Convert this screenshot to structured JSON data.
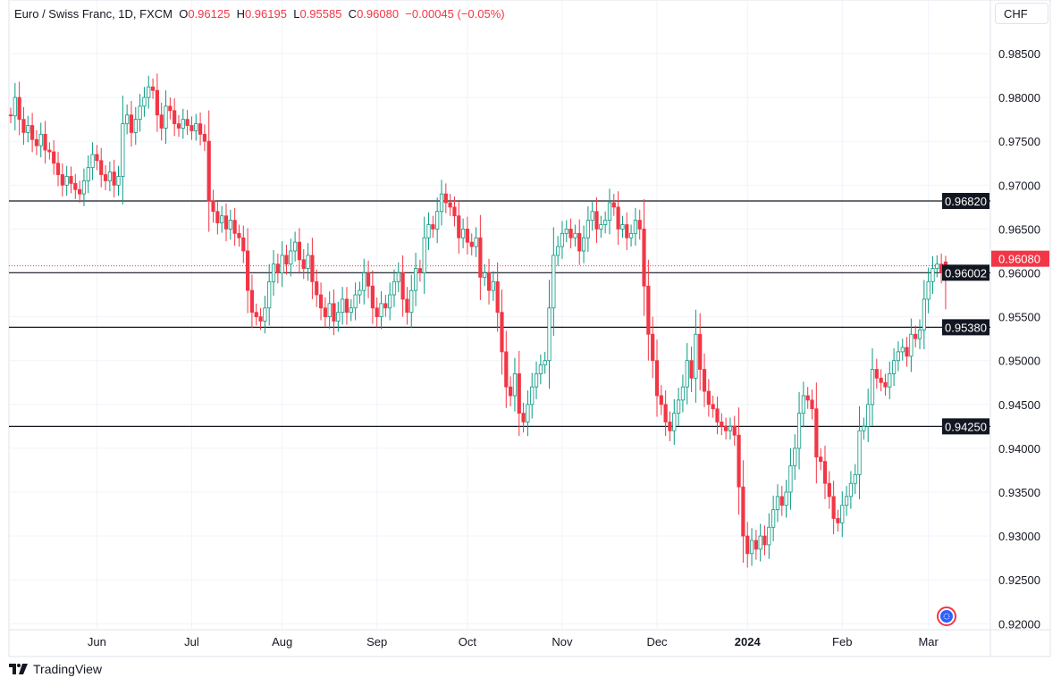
{
  "header": {
    "symbol": "Euro / Swiss Franc, 1D, FXCM",
    "o_label": "O",
    "o": "0.96125",
    "h_label": "H",
    "h": "0.96195",
    "l_label": "L",
    "l": "0.95585",
    "c_label": "C",
    "c": "0.96080",
    "change": "−0.00045 (−0.05%)"
  },
  "currency_button": "CHF",
  "brand": "TradingView",
  "colors": {
    "up": "#089981",
    "down": "#f23645",
    "line": "#131722",
    "grid": "#f0f3fa"
  },
  "chart_data": {
    "type": "candlestick",
    "interval": "1D",
    "ylim": [
      0.9185,
      0.9895
    ],
    "y_ticks": [
      "0.92000",
      "0.92500",
      "0.93000",
      "0.93500",
      "0.94000",
      "0.94500",
      "0.95000",
      "0.95500",
      "0.96000",
      "0.96500",
      "0.97000",
      "0.97500",
      "0.98000",
      "0.98500"
    ],
    "x_ticks": [
      {
        "label": "Jun",
        "index": 20,
        "bold": false
      },
      {
        "label": "Jul",
        "index": 42,
        "bold": false
      },
      {
        "label": "Aug",
        "index": 63,
        "bold": false
      },
      {
        "label": "Sep",
        "index": 85,
        "bold": false
      },
      {
        "label": "Oct",
        "index": 106,
        "bold": false
      },
      {
        "label": "Nov",
        "index": 128,
        "bold": false
      },
      {
        "label": "Dec",
        "index": 150,
        "bold": false
      },
      {
        "label": "2024",
        "index": 171,
        "bold": true
      },
      {
        "label": "Feb",
        "index": 193,
        "bold": false
      },
      {
        "label": "Mar",
        "index": 213,
        "bold": false
      }
    ],
    "grid": true,
    "first_open": 0.978,
    "close": [
      0.9779,
      0.98,
      0.9775,
      0.976,
      0.9768,
      0.9752,
      0.9745,
      0.9758,
      0.974,
      0.9738,
      0.9725,
      0.9712,
      0.97,
      0.971,
      0.9702,
      0.9695,
      0.969,
      0.9705,
      0.972,
      0.9735,
      0.9728,
      0.9712,
      0.9705,
      0.9715,
      0.97,
      0.971,
      0.977,
      0.978,
      0.976,
      0.9775,
      0.979,
      0.98,
      0.9812,
      0.9808,
      0.978,
      0.9765,
      0.979,
      0.9785,
      0.977,
      0.9765,
      0.9775,
      0.9768,
      0.9762,
      0.977,
      0.9758,
      0.975,
      0.9682,
      0.967,
      0.9657,
      0.9665,
      0.965,
      0.966,
      0.9645,
      0.964,
      0.9625,
      0.958,
      0.9555,
      0.955,
      0.9545,
      0.956,
      0.959,
      0.961,
      0.96,
      0.962,
      0.961,
      0.9625,
      0.9635,
      0.9615,
      0.9605,
      0.962,
      0.959,
      0.9575,
      0.956,
      0.955,
      0.9565,
      0.9545,
      0.9555,
      0.957,
      0.9555,
      0.956,
      0.9575,
      0.958,
      0.96,
      0.9585,
      0.956,
      0.955,
      0.9565,
      0.956,
      0.9575,
      0.959,
      0.96,
      0.957,
      0.9555,
      0.958,
      0.9605,
      0.96,
      0.964,
      0.9655,
      0.965,
      0.967,
      0.969,
      0.968,
      0.9675,
      0.9665,
      0.964,
      0.965,
      0.9635,
      0.963,
      0.964,
      0.9595,
      0.96,
      0.958,
      0.959,
      0.9555,
      0.951,
      0.947,
      0.946,
      0.9485,
      0.944,
      0.943,
      0.945,
      0.947,
      0.9485,
      0.9495,
      0.95,
      0.956,
      0.962,
      0.963,
      0.9645,
      0.965,
      0.964,
      0.9645,
      0.9625,
      0.964,
      0.966,
      0.967,
      0.965,
      0.9655,
      0.966,
      0.968,
      0.9675,
      0.965,
      0.9655,
      0.964,
      0.9645,
      0.966,
      0.965,
      0.9585,
      0.953,
      0.95,
      0.946,
      0.945,
      0.943,
      0.942,
      0.944,
      0.9455,
      0.947,
      0.95,
      0.948,
      0.953,
      0.949,
      0.9465,
      0.945,
      0.9445,
      0.943,
      0.9425,
      0.942,
      0.9425,
      0.9415,
      0.9356,
      0.93,
      0.928,
      0.9295,
      0.9285,
      0.93,
      0.929,
      0.931,
      0.933,
      0.9345,
      0.9335,
      0.935,
      0.938,
      0.94,
      0.944,
      0.946,
      0.9455,
      0.9445,
      0.939,
      0.9385,
      0.936,
      0.9345,
      0.932,
      0.9315,
      0.9335,
      0.9345,
      0.936,
      0.937,
      0.942,
      0.9425,
      0.945,
      0.949,
      0.948,
      0.9475,
      0.947,
      0.9485,
      0.95,
      0.951,
      0.9515,
      0.9505,
      0.953,
      0.9525,
      0.9535,
      0.957,
      0.959,
      0.9605,
      0.961,
      0.96,
      0.9608
    ],
    "last_candle": {
      "open": 0.96125,
      "high": 0.96195,
      "low": 0.95585,
      "close": 0.9608
    },
    "horizontal_lines": [
      {
        "price": 0.9682,
        "label": "0.96820"
      },
      {
        "price": 0.96002,
        "label": "0.96002"
      },
      {
        "price": 0.9538,
        "label": "0.95380"
      },
      {
        "price": 0.9425,
        "label": "0.94250"
      }
    ],
    "last_price": {
      "price": 0.9608,
      "label": "0.96080"
    }
  }
}
